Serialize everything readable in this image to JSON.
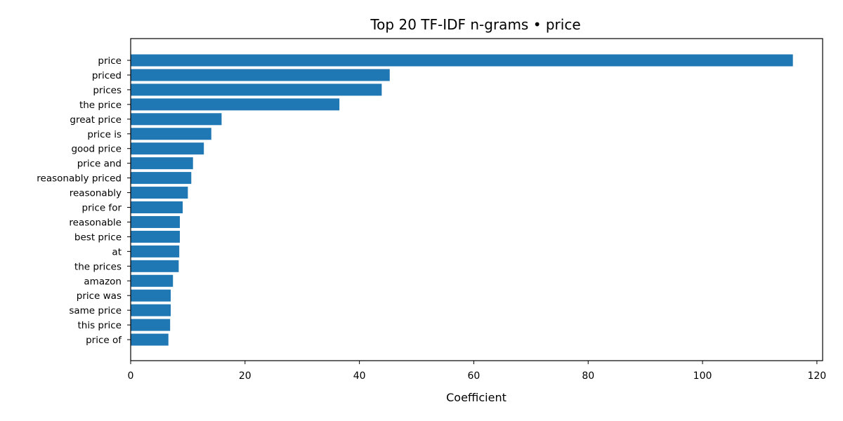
{
  "chart_data": {
    "type": "bar",
    "orientation": "horizontal",
    "title": "Top 20 TF-IDF n-grams • price",
    "xlabel": "Coefficient",
    "ylabel": "",
    "xlim": [
      0,
      121
    ],
    "xticks": [
      0,
      20,
      40,
      60,
      80,
      100,
      120
    ],
    "grid": false,
    "legend": "none",
    "bar_color": "#1f77b4",
    "categories": [
      "price",
      "priced",
      "prices",
      "the price",
      "great price",
      "price is",
      "good price",
      "price and",
      "reasonably priced",
      "reasonably",
      "price for",
      "reasonable",
      "best price",
      "at",
      "the prices",
      "amazon",
      "price was",
      "same price",
      "this price",
      "price of"
    ],
    "values": [
      115.8,
      45.3,
      43.9,
      36.5,
      15.9,
      14.1,
      12.8,
      10.9,
      10.6,
      10.0,
      9.1,
      8.6,
      8.6,
      8.5,
      8.4,
      7.4,
      7.0,
      7.0,
      6.9,
      6.6
    ]
  }
}
